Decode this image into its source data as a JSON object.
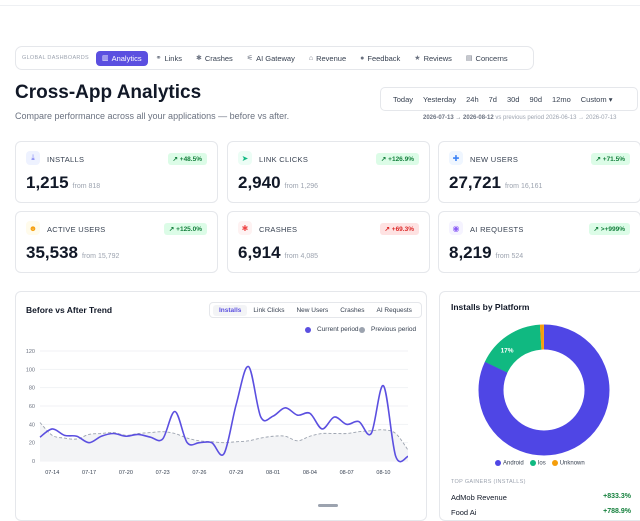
{
  "nav": {
    "label": "GLOBAL DASHBOARDS",
    "tabs": [
      {
        "label": "Analytics",
        "icon": "chart-icon",
        "glyph": "▥",
        "active": true
      },
      {
        "label": "Links",
        "icon": "link-icon",
        "glyph": "⚭"
      },
      {
        "label": "Crashes",
        "icon": "bug-icon",
        "glyph": "✱"
      },
      {
        "label": "AI Gateway",
        "icon": "ai-icon",
        "glyph": "⚟"
      },
      {
        "label": "Revenue",
        "icon": "bank-icon",
        "glyph": "⌂"
      },
      {
        "label": "Feedback",
        "icon": "chat-icon",
        "glyph": "●"
      },
      {
        "label": "Reviews",
        "icon": "star-icon",
        "glyph": "★"
      },
      {
        "label": "Concerns",
        "icon": "list-icon",
        "glyph": "▤"
      }
    ]
  },
  "page": {
    "title": "Cross-App Analytics",
    "subtitle": "Compare performance across all your applications — before vs after."
  },
  "range": {
    "options": [
      "Today",
      "Yesterday",
      "24h",
      "7d",
      "30d",
      "90d",
      "12mo",
      "Custom ▾"
    ],
    "current": "2026-07-13 → 2026-08-12",
    "compare_text": "vs previous period 2026-06-13 → 2026-07-13"
  },
  "metrics": [
    {
      "label": "INSTALLS",
      "value": "1,215",
      "from": "from 818",
      "change": "↗ +48.5%",
      "dir": "up",
      "icon": "download-icon",
      "glyph": "⤓",
      "color": "#6366f1",
      "bg": "#eef2ff"
    },
    {
      "label": "LINK CLICKS",
      "value": "2,940",
      "from": "from 1,296",
      "change": "↗ +126.9%",
      "dir": "up",
      "icon": "cursor-icon",
      "glyph": "➤",
      "color": "#10b981",
      "bg": "#ecfdf5"
    },
    {
      "label": "NEW USERS",
      "value": "27,721",
      "from": "from 16,161",
      "change": "↗ +71.5%",
      "dir": "up",
      "icon": "user-add-icon",
      "glyph": "✚",
      "color": "#3b82f6",
      "bg": "#eff6ff"
    },
    {
      "label": "ACTIVE USERS",
      "value": "35,538",
      "from": "from 15,792",
      "change": "↗ +125.0%",
      "dir": "up",
      "icon": "users-icon",
      "glyph": "☻",
      "color": "#f59e0b",
      "bg": "#fffbeb"
    },
    {
      "label": "CRASHES",
      "value": "6,914",
      "from": "from 4,085",
      "change": "↗ +69.3%",
      "dir": "down",
      "icon": "bug-icon",
      "glyph": "✱",
      "color": "#ef4444",
      "bg": "#fef2f2"
    },
    {
      "label": "AI REQUESTS",
      "value": "8,219",
      "from": "from 524",
      "change": "↗ >+999%",
      "dir": "up",
      "icon": "robot-icon",
      "glyph": "◉",
      "color": "#8b5cf6",
      "bg": "#f5f3ff"
    }
  ],
  "trend": {
    "title": "Before vs After Trend",
    "tabs": [
      "Installs",
      "Link Clicks",
      "New Users",
      "Crashes",
      "AI Requests"
    ],
    "legend": {
      "current": "Current period",
      "previous": "Previous period"
    }
  },
  "chart_data": [
    {
      "type": "line",
      "x": [
        "07-13",
        "07-14",
        "07-15",
        "07-16",
        "07-17",
        "07-18",
        "07-19",
        "07-20",
        "07-21",
        "07-22",
        "07-23",
        "07-24",
        "07-25",
        "07-26",
        "07-27",
        "07-28",
        "07-29",
        "07-30",
        "07-31",
        "08-01",
        "08-02",
        "08-03",
        "08-04",
        "08-05",
        "08-06",
        "08-07",
        "08-08",
        "08-09",
        "08-10",
        "08-11",
        "08-12"
      ],
      "x_ticks": [
        "07-14",
        "07-17",
        "07-20",
        "07-23",
        "07-26",
        "07-29",
        "08-01",
        "08-04",
        "08-07",
        "08-10"
      ],
      "series": [
        {
          "name": "Current period",
          "color": "#5b4fe0",
          "values": [
            26,
            35,
            28,
            27,
            20,
            27,
            30,
            27,
            29,
            26,
            24,
            54,
            20,
            20,
            20,
            8,
            62,
            103,
            48,
            49,
            58,
            50,
            52,
            35,
            48,
            40,
            43,
            30,
            82,
            5,
            5
          ]
        },
        {
          "name": "Previous period",
          "color": "#9ca3af",
          "values": [
            42,
            28,
            25,
            24,
            29,
            30,
            31,
            28,
            30,
            31,
            32,
            30,
            25,
            22,
            21,
            20,
            21,
            22,
            25,
            27,
            27,
            22,
            27,
            30,
            30,
            30,
            32,
            33,
            34,
            30,
            12
          ]
        }
      ],
      "ylim": [
        0,
        120
      ],
      "yticks": [
        0,
        20,
        40,
        60,
        80,
        100,
        120
      ]
    },
    {
      "type": "pie",
      "title": "Installs by Platform",
      "categories": [
        "Android",
        "Ios",
        "Unknown"
      ],
      "values": [
        82,
        17,
        1
      ],
      "colors": [
        "#4f46e5",
        "#10b981",
        "#f59e0b"
      ],
      "labels": [
        "82%",
        "17%",
        ""
      ]
    }
  ],
  "platform": {
    "title": "Installs by Platform",
    "gainers_label": "TOP GAINERS (INSTALLS)",
    "gainers": [
      {
        "name": "AdMob Revenue",
        "pct": "+833.3%"
      },
      {
        "name": "Food Ai",
        "pct": "+788.9%"
      }
    ]
  }
}
